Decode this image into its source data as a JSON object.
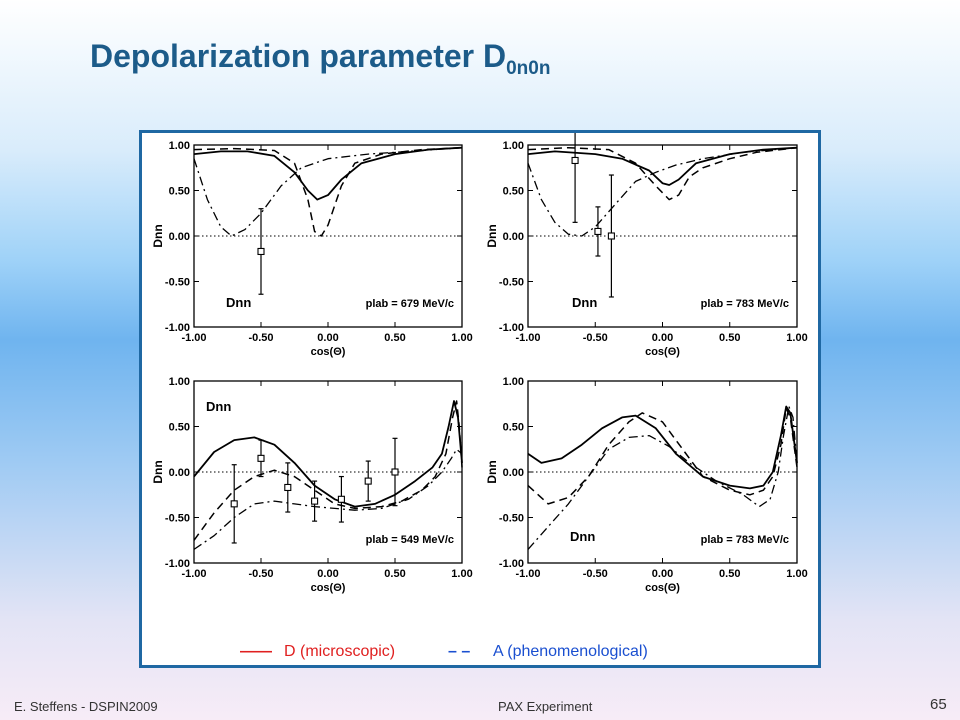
{
  "slide": {
    "title_main": "Depolarization parameter D",
    "title_sub": "0n0n",
    "footer_left": "E. Steffens  -  DSPIN2009",
    "footer_center": "PAX Experiment",
    "slide_number": "65"
  },
  "legend": {
    "solid_dash": "——",
    "solid_label": "D (microscopic)",
    "dashed_dash": "– –",
    "dashed_label": "A (phenomenological)",
    "solid_color": "#e02020",
    "dashed_color": "#1a4fd0"
  },
  "chart_data": [
    {
      "type": "line",
      "ylabel": "Dnn",
      "xlabel": "cos(Θ)",
      "panel_label": "Dnn",
      "energy_label": "plab = 679 MeV/c",
      "xlim": [
        -1,
        1
      ],
      "ylim": [
        -1,
        1
      ],
      "xticks": [
        "-1.00",
        "-0.50",
        "0.00",
        "0.50",
        "1.00"
      ],
      "yticks": [
        "1.00",
        "0.50",
        "0.00",
        "-0.50",
        "-1.00"
      ],
      "series": [
        {
          "style": "solid",
          "points": [
            [
              -1,
              0.9
            ],
            [
              -0.8,
              0.93
            ],
            [
              -0.6,
              0.93
            ],
            [
              -0.4,
              0.88
            ],
            [
              -0.25,
              0.7
            ],
            [
              -0.15,
              0.5
            ],
            [
              -0.08,
              0.4
            ],
            [
              0.0,
              0.45
            ],
            [
              0.1,
              0.62
            ],
            [
              0.25,
              0.8
            ],
            [
              0.5,
              0.9
            ],
            [
              0.75,
              0.95
            ],
            [
              1,
              0.97
            ]
          ]
        },
        {
          "style": "dashed",
          "points": [
            [
              -1,
              0.95
            ],
            [
              -0.7,
              0.96
            ],
            [
              -0.4,
              0.94
            ],
            [
              -0.25,
              0.8
            ],
            [
              -0.15,
              0.4
            ],
            [
              -0.1,
              0.05
            ],
            [
              -0.05,
              0.0
            ],
            [
              0.0,
              0.12
            ],
            [
              0.1,
              0.55
            ],
            [
              0.2,
              0.8
            ],
            [
              0.4,
              0.9
            ],
            [
              0.7,
              0.95
            ],
            [
              1,
              0.97
            ]
          ]
        },
        {
          "style": "dashdot",
          "points": [
            [
              -1,
              0.85
            ],
            [
              -0.9,
              0.4
            ],
            [
              -0.8,
              0.1
            ],
            [
              -0.72,
              0.0
            ],
            [
              -0.62,
              0.07
            ],
            [
              -0.5,
              0.25
            ],
            [
              -0.35,
              0.55
            ],
            [
              -0.2,
              0.75
            ],
            [
              0.0,
              0.85
            ],
            [
              0.3,
              0.9
            ],
            [
              0.6,
              0.93
            ],
            [
              1,
              0.97
            ]
          ]
        }
      ],
      "measurements": [
        {
          "x": -0.5,
          "y": -0.17,
          "err": 0.47
        }
      ]
    },
    {
      "type": "line",
      "ylabel": "Dnn",
      "xlabel": "cos(Θ)",
      "panel_label": "Dnn",
      "energy_label": "plab = 783 MeV/c",
      "xlim": [
        -1,
        1
      ],
      "ylim": [
        -1,
        1
      ],
      "xticks": [
        "-1.00",
        "-0.50",
        "0.00",
        "0.50",
        "1.00"
      ],
      "yticks": [
        "1.00",
        "0.50",
        "0.00",
        "-0.50",
        "-1.00"
      ],
      "series": [
        {
          "style": "solid",
          "points": [
            [
              -1,
              0.9
            ],
            [
              -0.8,
              0.93
            ],
            [
              -0.5,
              0.9
            ],
            [
              -0.3,
              0.85
            ],
            [
              -0.1,
              0.72
            ],
            [
              0.0,
              0.58
            ],
            [
              0.05,
              0.56
            ],
            [
              0.12,
              0.62
            ],
            [
              0.25,
              0.8
            ],
            [
              0.5,
              0.9
            ],
            [
              0.75,
              0.95
            ],
            [
              1,
              0.97
            ]
          ]
        },
        {
          "style": "dashed",
          "points": [
            [
              -1,
              0.95
            ],
            [
              -0.7,
              0.97
            ],
            [
              -0.4,
              0.95
            ],
            [
              -0.2,
              0.8
            ],
            [
              -0.05,
              0.55
            ],
            [
              0.05,
              0.4
            ],
            [
              0.12,
              0.45
            ],
            [
              0.2,
              0.65
            ],
            [
              0.3,
              0.75
            ],
            [
              0.5,
              0.85
            ],
            [
              0.7,
              0.92
            ],
            [
              1,
              0.97
            ]
          ]
        },
        {
          "style": "dashdot",
          "points": [
            [
              -1,
              0.8
            ],
            [
              -0.9,
              0.4
            ],
            [
              -0.8,
              0.15
            ],
            [
              -0.7,
              0.02
            ],
            [
              -0.6,
              0.0
            ],
            [
              -0.5,
              0.1
            ],
            [
              -0.35,
              0.35
            ],
            [
              -0.2,
              0.6
            ],
            [
              -0.05,
              0.7
            ],
            [
              0.1,
              0.78
            ],
            [
              0.3,
              0.85
            ],
            [
              0.6,
              0.92
            ],
            [
              1,
              0.97
            ]
          ]
        }
      ],
      "measurements": [
        {
          "x": -0.65,
          "y": 0.83,
          "err": 0.68
        },
        {
          "x": -0.48,
          "y": 0.05,
          "err": 0.27
        },
        {
          "x": -0.38,
          "y": 0.0,
          "err": 0.67
        }
      ]
    },
    {
      "type": "line",
      "ylabel": "Dnn",
      "xlabel": "cos(Θ)",
      "panel_label": "Dnn",
      "energy_label": "plab = 549 MeV/c",
      "xlim": [
        -1,
        1
      ],
      "ylim": [
        -1,
        1
      ],
      "xticks": [
        "-1.00",
        "-0.50",
        "0.00",
        "0.50",
        "1.00"
      ],
      "yticks": [
        "1.00",
        "0.50",
        "0.00",
        "-0.50",
        "-1.00"
      ],
      "series": [
        {
          "style": "solid",
          "points": [
            [
              -1,
              -0.05
            ],
            [
              -0.85,
              0.22
            ],
            [
              -0.7,
              0.35
            ],
            [
              -0.55,
              0.38
            ],
            [
              -0.4,
              0.3
            ],
            [
              -0.25,
              0.1
            ],
            [
              -0.1,
              -0.15
            ],
            [
              0.05,
              -0.3
            ],
            [
              0.2,
              -0.38
            ],
            [
              0.35,
              -0.35
            ],
            [
              0.5,
              -0.25
            ],
            [
              0.65,
              -0.1
            ],
            [
              0.78,
              0.05
            ],
            [
              0.85,
              0.2
            ],
            [
              0.9,
              0.5
            ],
            [
              0.94,
              0.78
            ],
            [
              0.97,
              0.6
            ],
            [
              1,
              0.1
            ]
          ]
        },
        {
          "style": "dashed",
          "points": [
            [
              -1,
              -0.75
            ],
            [
              -0.85,
              -0.45
            ],
            [
              -0.7,
              -0.2
            ],
            [
              -0.55,
              -0.05
            ],
            [
              -0.4,
              0.02
            ],
            [
              -0.25,
              -0.05
            ],
            [
              -0.1,
              -0.2
            ],
            [
              0.05,
              -0.35
            ],
            [
              0.2,
              -0.4
            ],
            [
              0.4,
              -0.38
            ],
            [
              0.55,
              -0.32
            ],
            [
              0.7,
              -0.2
            ],
            [
              0.8,
              -0.05
            ],
            [
              0.88,
              0.2
            ],
            [
              0.93,
              0.6
            ],
            [
              0.96,
              0.78
            ],
            [
              0.98,
              0.5
            ],
            [
              1,
              0.05
            ]
          ]
        },
        {
          "style": "dashdot",
          "points": [
            [
              -1,
              -0.85
            ],
            [
              -0.85,
              -0.7
            ],
            [
              -0.7,
              -0.5
            ],
            [
              -0.55,
              -0.35
            ],
            [
              -0.4,
              -0.32
            ],
            [
              -0.25,
              -0.35
            ],
            [
              -0.1,
              -0.38
            ],
            [
              0.05,
              -0.4
            ],
            [
              0.2,
              -0.42
            ],
            [
              0.4,
              -0.4
            ],
            [
              0.6,
              -0.3
            ],
            [
              0.75,
              -0.15
            ],
            [
              0.85,
              0.0
            ],
            [
              0.92,
              0.15
            ],
            [
              0.96,
              0.25
            ],
            [
              1,
              0.2
            ]
          ]
        }
      ],
      "measurements": [
        {
          "x": -0.7,
          "y": -0.35,
          "err": 0.43
        },
        {
          "x": -0.5,
          "y": 0.15,
          "err": 0.2
        },
        {
          "x": -0.3,
          "y": -0.17,
          "err": 0.27
        },
        {
          "x": -0.1,
          "y": -0.32,
          "err": 0.22
        },
        {
          "x": 0.1,
          "y": -0.3,
          "err": 0.25
        },
        {
          "x": 0.3,
          "y": -0.1,
          "err": 0.22
        },
        {
          "x": 0.5,
          "y": 0.0,
          "err": 0.37
        }
      ]
    },
    {
      "type": "line",
      "ylabel": "Dnn",
      "xlabel": "cos(Θ)",
      "panel_label": "Dnn",
      "energy_label": "plab = 783 MeV/c",
      "xlim": [
        -1,
        1
      ],
      "ylim": [
        -1,
        1
      ],
      "xticks": [
        "-1.00",
        "-0.50",
        "0.00",
        "0.50",
        "1.00"
      ],
      "yticks": [
        "1.00",
        "0.50",
        "0.00",
        "-0.50",
        "-1.00"
      ],
      "series": [
        {
          "style": "solid",
          "points": [
            [
              -1,
              0.2
            ],
            [
              -0.9,
              0.1
            ],
            [
              -0.75,
              0.15
            ],
            [
              -0.6,
              0.3
            ],
            [
              -0.45,
              0.48
            ],
            [
              -0.3,
              0.6
            ],
            [
              -0.2,
              0.62
            ],
            [
              -0.05,
              0.48
            ],
            [
              0.1,
              0.2
            ],
            [
              0.3,
              -0.05
            ],
            [
              0.5,
              -0.15
            ],
            [
              0.65,
              -0.18
            ],
            [
              0.75,
              -0.15
            ],
            [
              0.82,
              0.0
            ],
            [
              0.88,
              0.4
            ],
            [
              0.92,
              0.72
            ],
            [
              0.95,
              0.65
            ],
            [
              1,
              0.1
            ]
          ]
        },
        {
          "style": "dashed",
          "points": [
            [
              -1,
              -0.15
            ],
            [
              -0.85,
              -0.35
            ],
            [
              -0.7,
              -0.28
            ],
            [
              -0.55,
              -0.05
            ],
            [
              -0.4,
              0.3
            ],
            [
              -0.25,
              0.55
            ],
            [
              -0.15,
              0.65
            ],
            [
              0.0,
              0.55
            ],
            [
              0.15,
              0.25
            ],
            [
              0.3,
              -0.05
            ],
            [
              0.5,
              -0.2
            ],
            [
              0.65,
              -0.25
            ],
            [
              0.75,
              -0.2
            ],
            [
              0.82,
              -0.05
            ],
            [
              0.88,
              0.3
            ],
            [
              0.92,
              0.7
            ],
            [
              0.95,
              0.6
            ],
            [
              1,
              0.05
            ]
          ]
        },
        {
          "style": "dashdot",
          "points": [
            [
              -1,
              -0.85
            ],
            [
              -0.85,
              -0.6
            ],
            [
              -0.7,
              -0.35
            ],
            [
              -0.55,
              -0.05
            ],
            [
              -0.4,
              0.25
            ],
            [
              -0.25,
              0.38
            ],
            [
              -0.1,
              0.4
            ],
            [
              0.05,
              0.28
            ],
            [
              0.2,
              0.1
            ],
            [
              0.4,
              -0.1
            ],
            [
              0.6,
              -0.25
            ],
            [
              0.72,
              -0.38
            ],
            [
              0.8,
              -0.3
            ],
            [
              0.86,
              0.0
            ],
            [
              0.9,
              0.4
            ],
            [
              0.94,
              0.72
            ],
            [
              0.97,
              0.6
            ],
            [
              1,
              0.1
            ]
          ]
        }
      ],
      "measurements": []
    }
  ]
}
